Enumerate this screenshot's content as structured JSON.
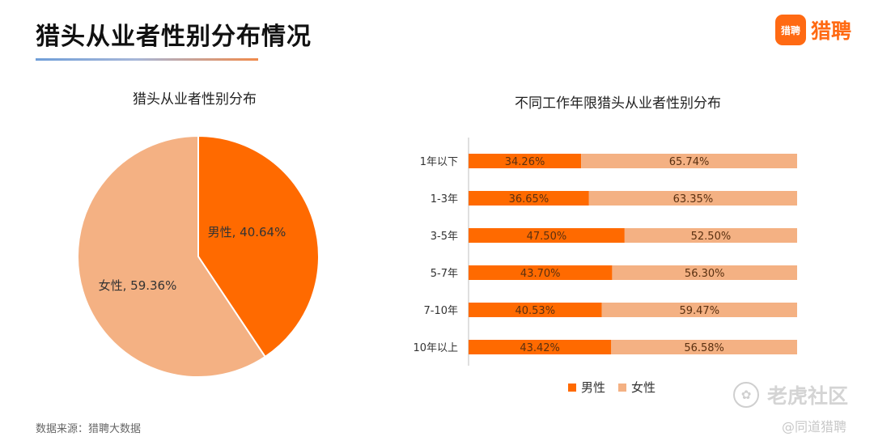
{
  "header": {
    "title": "猎头从业者性别分布情况",
    "logo_badge": "猎聘",
    "logo_text": "猎聘"
  },
  "footer": {
    "source": "数据来源：猎聘大数据"
  },
  "watermark": {
    "icon": "paw-icon",
    "main": "老虎社区",
    "sub": "@同道猎聘"
  },
  "colors": {
    "male": "#ff6a00",
    "female": "#f4b183",
    "accent": "#ff6a13"
  },
  "chart_data": [
    {
      "type": "pie",
      "title": "猎头从业者性别分布",
      "slices": [
        {
          "name": "男性",
          "value": 40.64,
          "label": "男性, 40.64%"
        },
        {
          "name": "女性",
          "value": 59.36,
          "label": "女性, 59.36%"
        }
      ]
    },
    {
      "type": "bar",
      "stacked": true,
      "orientation": "horizontal",
      "title": "不同工作年限猎头从业者性别分布",
      "categories": [
        "1年以下",
        "1-3年",
        "3-5年",
        "5-7年",
        "7-10年",
        "10年以上"
      ],
      "series": [
        {
          "name": "男性",
          "values": [
            34.26,
            36.65,
            47.5,
            43.7,
            40.53,
            43.42
          ],
          "labels": [
            "34.26%",
            "36.65%",
            "47.50%",
            "43.70%",
            "40.53%",
            "43.42%"
          ]
        },
        {
          "name": "女性",
          "values": [
            65.74,
            63.35,
            52.5,
            56.3,
            59.47,
            56.58
          ],
          "labels": [
            "65.74%",
            "63.35%",
            "52.50%",
            "56.30%",
            "59.47%",
            "56.58%"
          ]
        }
      ],
      "xlim": [
        0,
        100
      ],
      "legend": "bottom"
    }
  ]
}
